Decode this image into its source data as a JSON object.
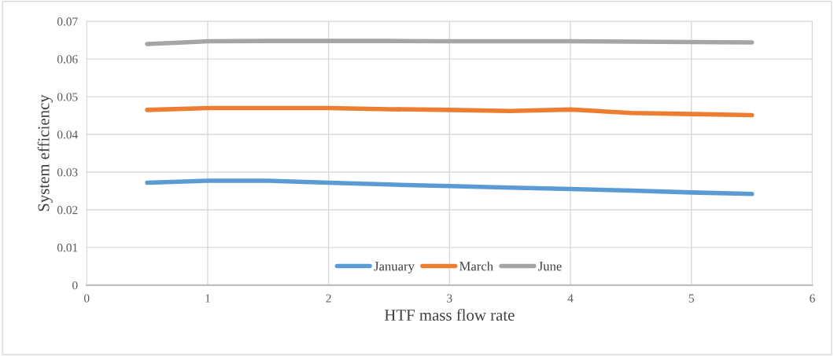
{
  "chart_data": {
    "type": "line",
    "xlabel": "HTF mass flow rate",
    "ylabel": "System efficiency",
    "x": [
      0.5,
      1,
      1.5,
      2,
      2.5,
      3,
      3.5,
      4,
      4.5,
      5,
      5.5
    ],
    "series": [
      {
        "name": "January",
        "color": "#5b9bd5",
        "values": [
          0.0272,
          0.0277,
          0.0277,
          0.0272,
          0.0267,
          0.0263,
          0.0259,
          0.0255,
          0.0251,
          0.0246,
          0.0242
        ]
      },
      {
        "name": "March",
        "color": "#ed7d31",
        "values": [
          0.0465,
          0.047,
          0.047,
          0.047,
          0.0467,
          0.0465,
          0.0462,
          0.0466,
          0.0457,
          0.0454,
          0.0451
        ]
      },
      {
        "name": "June",
        "color": "#a5a5a5",
        "values": [
          0.064,
          0.0647,
          0.0648,
          0.0648,
          0.0648,
          0.0647,
          0.0647,
          0.0647,
          0.0646,
          0.0645,
          0.0644
        ]
      }
    ],
    "xlim": [
      0,
      6
    ],
    "xticks": [
      0,
      1,
      2,
      3,
      4,
      5,
      6
    ],
    "ylim": [
      0,
      0.07
    ],
    "yticks": [
      {
        "value": 0,
        "label": "0"
      },
      0.01,
      0.02,
      0.03,
      0.04,
      0.05,
      0.06,
      0.07
    ],
    "grid": true,
    "legend": "bottom",
    "marker": "none",
    "line_style": "solid"
  }
}
